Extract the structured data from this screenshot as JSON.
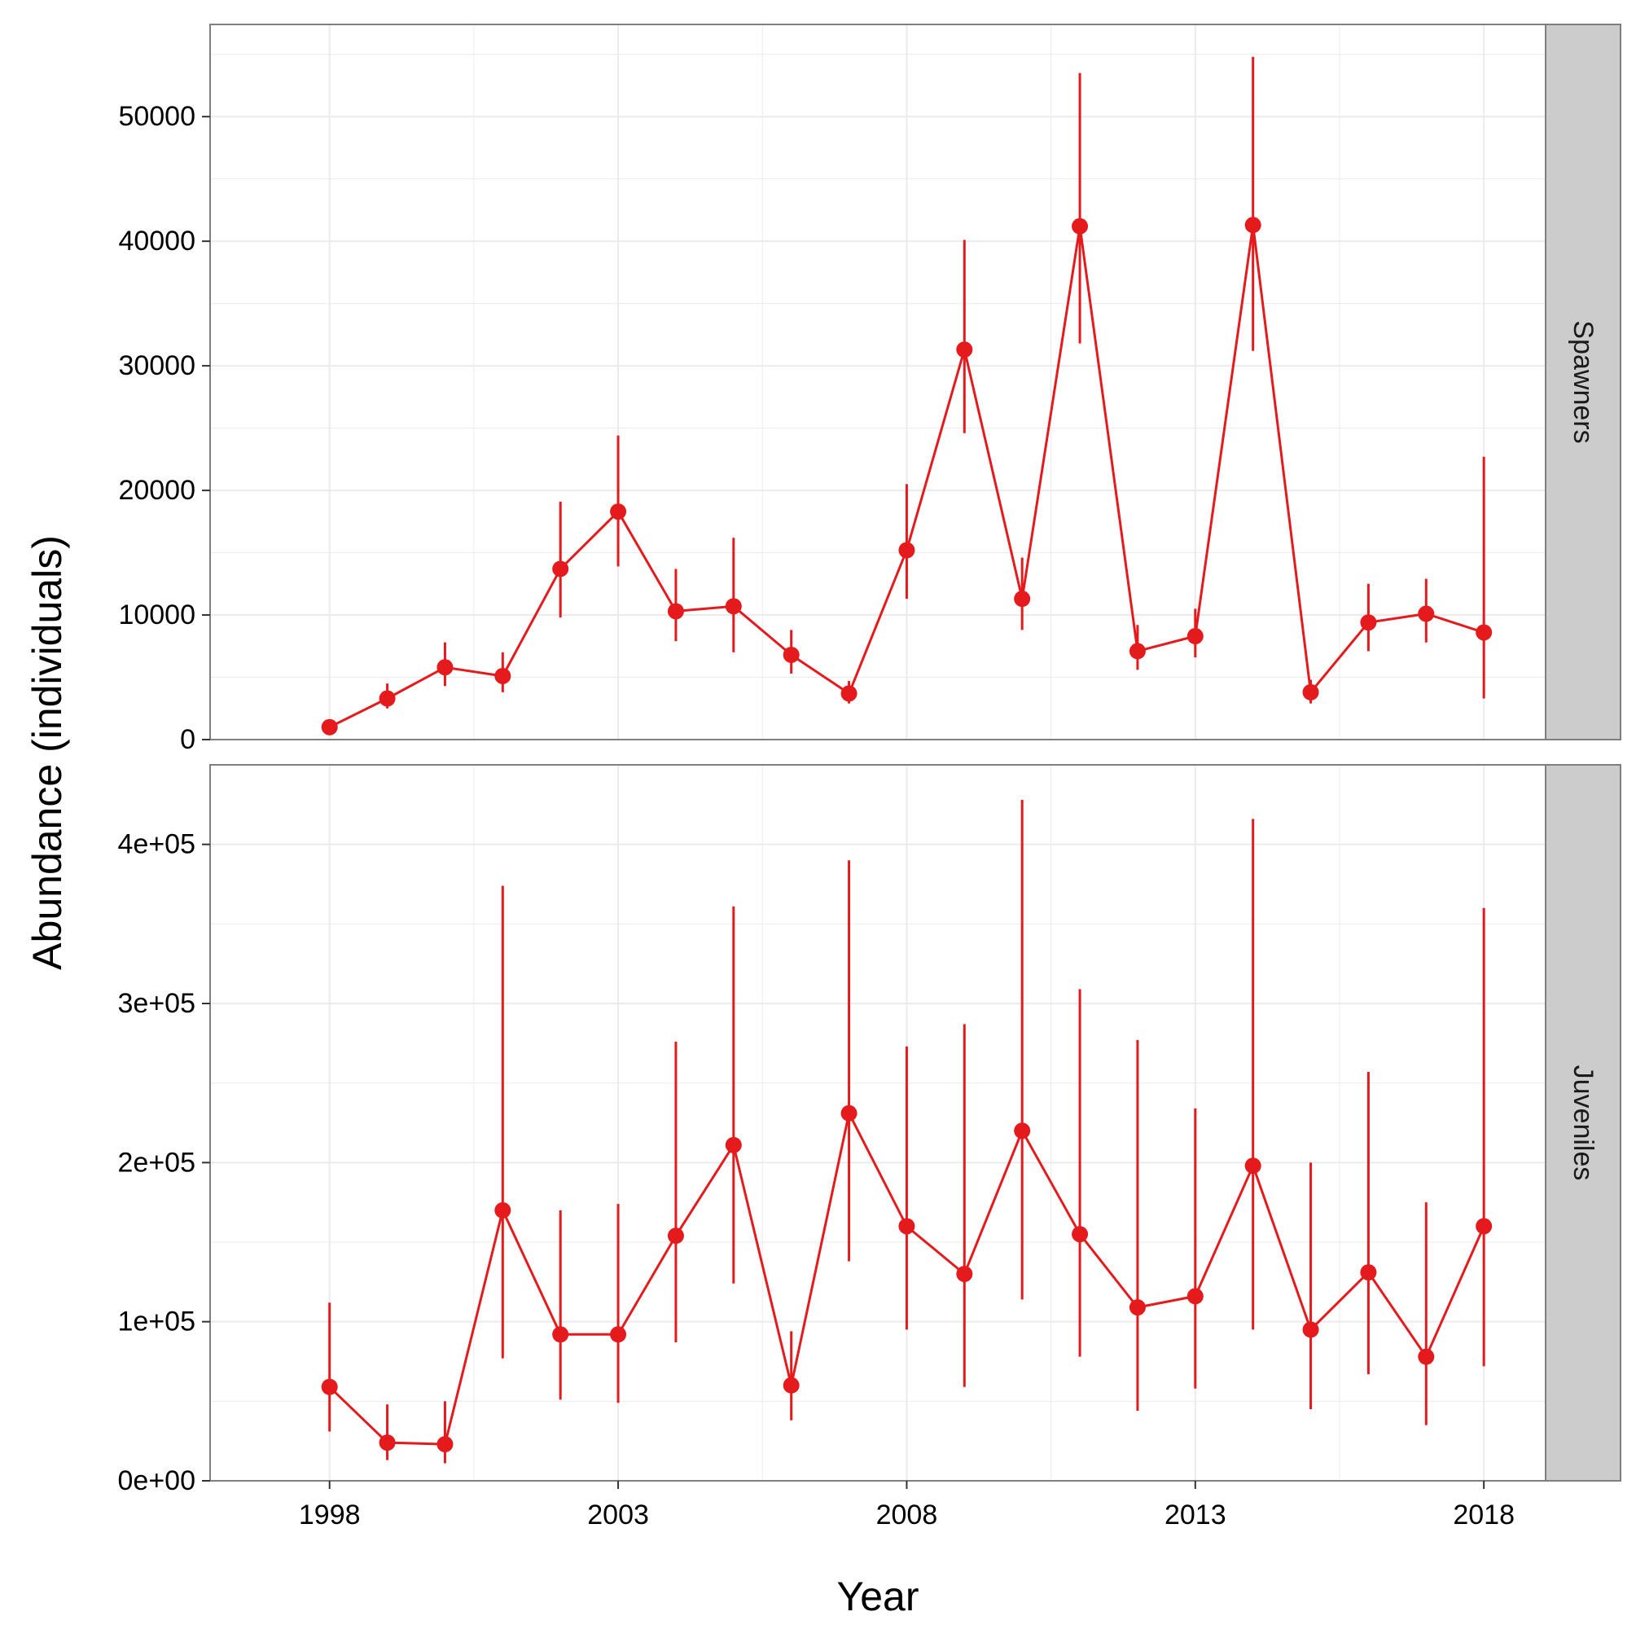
{
  "colors": {
    "series": "#e41a1c",
    "panel_background": "#ffffff",
    "panel_border": "#7f7f7f",
    "grid": "#ebebeb",
    "strip_background": "#cccccc",
    "text": "#000000"
  },
  "chart_data": {
    "type": "line",
    "xlabel": "Year",
    "ylabel": "Abundance (individuals)",
    "grid": true,
    "legend": "none",
    "error_bars": true,
    "x": [
      1998,
      1999,
      2000,
      2001,
      2002,
      2003,
      2004,
      2005,
      2006,
      2007,
      2008,
      2009,
      2010,
      2011,
      2012,
      2013,
      2014,
      2015,
      2016,
      2017,
      2018
    ],
    "xlim": [
      1995.93,
      2019.07
    ],
    "x_ticks": [
      1998,
      2003,
      2008,
      2013,
      2018
    ],
    "x_tick_labels": [
      "1998",
      "2003",
      "2008",
      "2013",
      "2018"
    ],
    "panels": [
      {
        "strip_label": "Spawners",
        "ylim": [
          0,
          57400
        ],
        "y_ticks": [
          0,
          10000,
          20000,
          30000,
          40000,
          50000
        ],
        "y_tick_labels": [
          "0",
          "10000",
          "20000",
          "30000",
          "40000",
          "50000"
        ],
        "values": [
          1000,
          3300,
          5800,
          5100,
          13700,
          18300,
          10300,
          10700,
          6800,
          3700,
          15200,
          31300,
          11300,
          41200,
          7100,
          8300,
          41300,
          3800,
          9400,
          10100,
          8600
        ],
        "lower": [
          800,
          2500,
          4300,
          3800,
          9800,
          13900,
          7900,
          7000,
          5300,
          2900,
          11300,
          24600,
          8800,
          31800,
          5600,
          6600,
          31200,
          2900,
          7100,
          7800,
          3300
        ],
        "upper": [
          1200,
          4500,
          7800,
          7000,
          19100,
          24400,
          13700,
          16200,
          8800,
          4700,
          20500,
          40100,
          14600,
          53500,
          9200,
          10500,
          54800,
          4800,
          12500,
          12900,
          22700
        ]
      },
      {
        "strip_label": "Juveniles",
        "ylim": [
          0,
          450000
        ],
        "y_ticks": [
          0,
          100000,
          200000,
          300000,
          400000
        ],
        "y_tick_labels": [
          "0e+00",
          "1e+05",
          "2e+05",
          "3e+05",
          "4e+05"
        ],
        "values": [
          59000,
          24000,
          23000,
          170000,
          92000,
          92000,
          154000,
          211000,
          60000,
          231000,
          160000,
          130000,
          220000,
          155000,
          109000,
          116000,
          198000,
          95000,
          131000,
          78000,
          160000
        ],
        "lower": [
          31000,
          13000,
          11000,
          77000,
          51000,
          49000,
          87000,
          124000,
          38000,
          138000,
          95000,
          59000,
          114000,
          78000,
          44000,
          58000,
          95000,
          45000,
          67000,
          35000,
          72000
        ],
        "upper": [
          112000,
          48000,
          50000,
          374000,
          170000,
          174000,
          276000,
          361000,
          94000,
          390000,
          273000,
          287000,
          428000,
          309000,
          277000,
          234000,
          416000,
          200000,
          257000,
          175000,
          360000
        ]
      }
    ]
  }
}
